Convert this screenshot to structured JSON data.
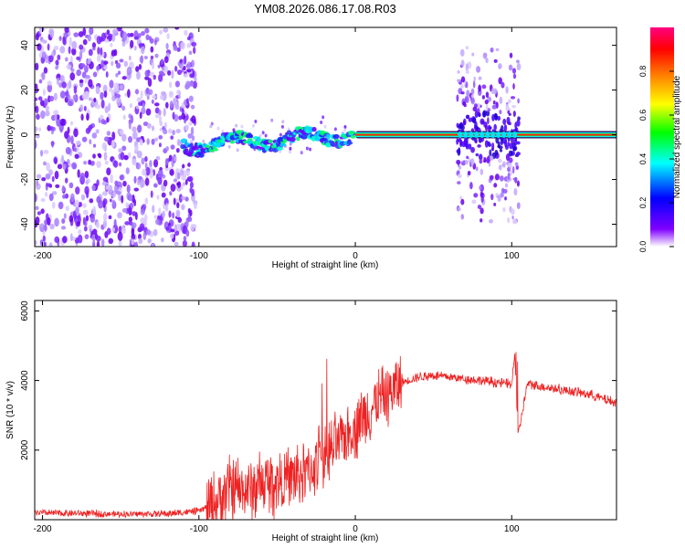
{
  "title": "YM08.2026.086.17.08.R03",
  "chart_data": [
    {
      "type": "heatmap",
      "xlabel": "Height of straight line (km)",
      "ylabel": "Frequency (Hz)",
      "xlim": [
        -205,
        167
      ],
      "ylim": [
        -50,
        48
      ],
      "xticks": [
        -200,
        -100,
        0,
        100
      ],
      "yticks": [
        -40,
        -20,
        0,
        20,
        40
      ],
      "regions": [
        {
          "name": "noise",
          "x_range": [
            -205,
            -102
          ],
          "f_range": [
            -50,
            48
          ]
        },
        {
          "name": "signal-trace",
          "x_range": [
            -110,
            167
          ],
          "f_approx": [
            -5,
            0
          ]
        },
        {
          "name": "noise-burst",
          "x_range": [
            65,
            105
          ],
          "f_range": [
            -45,
            40
          ]
        }
      ],
      "colorbar": {
        "label": "Normalized spectral amplitude",
        "range": [
          0,
          1
        ],
        "ticks": [
          "0.0",
          "0.2",
          "0.4",
          "0.6",
          "0.8"
        ],
        "tick_values": [
          0,
          0.2,
          0.4,
          0.6,
          0.8
        ],
        "colors": [
          "#ffffff",
          "#8000ff",
          "#0000ff",
          "#00ffff",
          "#00ff00",
          "#ffff00",
          "#ff8000",
          "#ff0000",
          "#ff0080"
        ]
      }
    },
    {
      "type": "line",
      "xlabel": "Height of straight line (km)",
      "ylabel": "SNR (10 * v/v)",
      "xlim": [
        -205,
        167
      ],
      "ylim": [
        0,
        6300
      ],
      "xticks": [
        -200,
        -100,
        0,
        100
      ],
      "yticks": [
        2000,
        4000,
        6000
      ],
      "line_color": "#ee2222",
      "series": [
        {
          "name": "SNR",
          "x": [
            -205,
            -180,
            -150,
            -120,
            -100,
            -90,
            -80,
            -70,
            -60,
            -50,
            -40,
            -30,
            -25,
            -20,
            -15,
            -10,
            -5,
            0,
            10,
            20,
            30,
            40,
            50,
            60,
            70,
            80,
            90,
            100,
            102,
            104,
            110,
            130,
            150,
            167
          ],
          "y": [
            200,
            180,
            160,
            170,
            250,
            450,
            900,
            800,
            1000,
            1100,
            1200,
            1400,
            1600,
            1800,
            2000,
            2200,
            2500,
            2700,
            3200,
            3600,
            3950,
            4100,
            4150,
            4100,
            4050,
            4000,
            3950,
            3900,
            4800,
            2400,
            3900,
            3750,
            3600,
            3350
          ]
        }
      ]
    }
  ]
}
